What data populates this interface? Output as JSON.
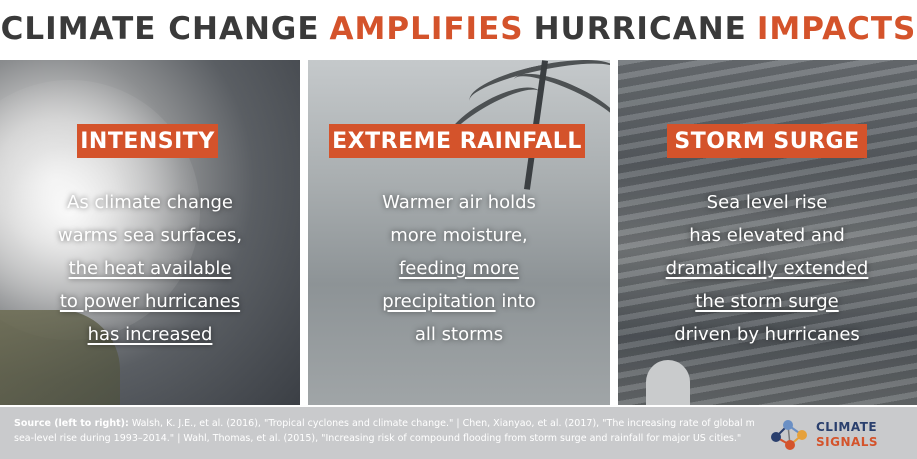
{
  "title": {
    "word1": "CLIMATE CHANGE",
    "word2": "AMPLIFIES",
    "word3": "HURRICANE",
    "word4": "IMPACTS",
    "accent_color": "#d4532b",
    "text_color": "#3a3a3a"
  },
  "panels": [
    {
      "heading": "INTENSITY",
      "lines": [
        "As climate change",
        "warms sea surfaces,",
        "the heat available",
        "to power hurricanes",
        "has increased"
      ]
    },
    {
      "heading": "EXTREME RAINFALL",
      "lines": [
        "Warmer air holds",
        "more moisture,",
        "feeding more",
        "precipitation",
        "into",
        "all storms"
      ]
    },
    {
      "heading": "STORM SURGE",
      "lines": [
        "Sea level rise",
        "has elevated and",
        "dramatically extended",
        "the storm surge",
        "driven by hurricanes"
      ]
    }
  ],
  "footer": {
    "source_label": "Source (left to right):",
    "line1": "Walsh, K. J.E., et al. (2016), \"Tropical cyclones and climate change.\" | Chen, Xianyao, et al. (2017), \"The increasing rate of global mean",
    "line2": "sea-level rise during 1993–2014.\" | Wahl, Thomas, et al. (2015), \"Increasing risk of compound flooding from  storm surge and rainfall for major US cities.\""
  },
  "logo": {
    "word1": "CLIMATE",
    "word2": "SIGNALS"
  }
}
